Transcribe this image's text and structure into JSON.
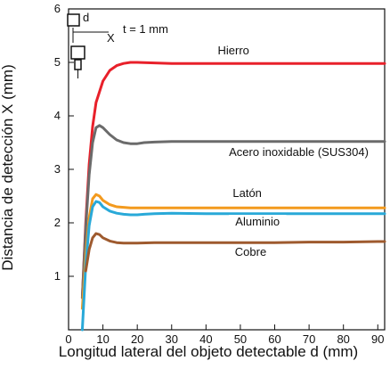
{
  "chart_data": {
    "type": "line",
    "xlabel": "Longitud lateral del objeto detectable d (mm)",
    "ylabel": "Distancia de detección X (mm)",
    "xlim": [
      0,
      92
    ],
    "ylim": [
      0,
      6
    ],
    "x_ticks": [
      "0",
      "10",
      "20",
      "30",
      "40",
      "50",
      "60",
      "70",
      "80",
      "90"
    ],
    "y_ticks": [
      "1",
      "2",
      "3",
      "4",
      "5",
      "6"
    ],
    "grid": true,
    "annotation": {
      "d_label": "d",
      "x_label": "X",
      "t_label": "t = 1 mm"
    },
    "colors": {
      "Hierro": "#e8202a",
      "Acero inoxidable (SUS304)": "#6b6b6b",
      "Latón": "#f39a1e",
      "Aluminio": "#29a9d8",
      "Cobre": "#9e5a2e"
    },
    "series": [
      {
        "name": "Hierro",
        "x": [
          4,
          5,
          6,
          7,
          8,
          10,
          12,
          14,
          16,
          18,
          20,
          25,
          30,
          40,
          50,
          60,
          70,
          80,
          90,
          92
        ],
        "y": [
          0.6,
          2.0,
          3.1,
          3.8,
          4.25,
          4.65,
          4.85,
          4.94,
          4.98,
          5.0,
          5.0,
          4.99,
          4.98,
          4.98,
          4.98,
          4.98,
          4.98,
          4.98,
          4.98,
          4.98
        ]
      },
      {
        "name": "Acero inoxidable (SUS304)",
        "x": [
          4,
          5,
          6,
          7,
          8,
          9,
          10,
          12,
          14,
          16,
          18,
          20,
          22,
          25,
          30,
          40,
          50,
          60,
          70,
          80,
          90,
          92
        ],
        "y": [
          0.6,
          1.9,
          2.9,
          3.5,
          3.78,
          3.82,
          3.78,
          3.65,
          3.55,
          3.5,
          3.48,
          3.48,
          3.5,
          3.51,
          3.52,
          3.52,
          3.52,
          3.52,
          3.52,
          3.52,
          3.52,
          3.52
        ]
      },
      {
        "name": "Latón",
        "x": [
          4,
          5,
          6,
          7,
          8,
          9,
          10,
          12,
          14,
          16,
          18,
          20,
          25,
          30,
          40,
          50,
          60,
          70,
          80,
          90,
          92
        ],
        "y": [
          0.4,
          1.4,
          2.1,
          2.45,
          2.53,
          2.5,
          2.42,
          2.34,
          2.3,
          2.29,
          2.28,
          2.28,
          2.28,
          2.28,
          2.28,
          2.28,
          2.28,
          2.28,
          2.28,
          2.28,
          2.28
        ]
      },
      {
        "name": "Aluminio",
        "x": [
          4,
          5,
          6,
          7,
          8,
          9,
          10,
          12,
          14,
          16,
          18,
          20,
          22,
          25,
          30,
          40,
          50,
          60,
          70,
          80,
          90,
          92
        ],
        "y": [
          0.0,
          1.2,
          1.95,
          2.3,
          2.4,
          2.38,
          2.3,
          2.22,
          2.18,
          2.16,
          2.15,
          2.15,
          2.16,
          2.17,
          2.18,
          2.17,
          2.17,
          2.17,
          2.17,
          2.17,
          2.17,
          2.17
        ]
      },
      {
        "name": "Cobre",
        "x": [
          5,
          6,
          7,
          8,
          9,
          10,
          12,
          14,
          16,
          18,
          20,
          25,
          30,
          40,
          50,
          60,
          70,
          80,
          90,
          92
        ],
        "y": [
          1.1,
          1.5,
          1.72,
          1.8,
          1.78,
          1.72,
          1.66,
          1.63,
          1.62,
          1.62,
          1.62,
          1.63,
          1.63,
          1.63,
          1.63,
          1.63,
          1.64,
          1.64,
          1.65,
          1.65
        ]
      }
    ],
    "labels": [
      {
        "text": "Hierro",
        "x": 48,
        "y": 5.15,
        "anchor": "middle"
      },
      {
        "text": "Acero inoxidable (SUS304)",
        "x": 67,
        "y": 3.25,
        "anchor": "middle"
      },
      {
        "text": "Latón",
        "x": 52,
        "y": 2.48,
        "anchor": "middle"
      },
      {
        "text": "Aluminio",
        "x": 55,
        "y": 1.95,
        "anchor": "middle"
      },
      {
        "text": "Cobre",
        "x": 53,
        "y": 1.38,
        "anchor": "middle"
      }
    ]
  }
}
